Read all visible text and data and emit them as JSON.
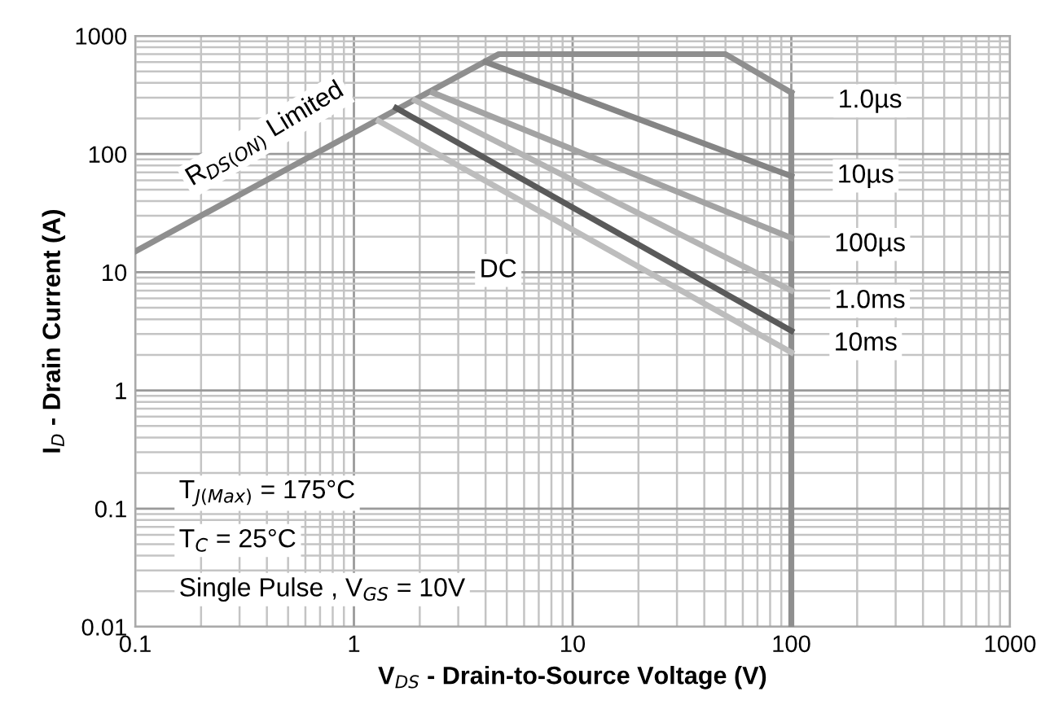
{
  "chart_data": {
    "type": "line",
    "xlabel": "V$_{DS}$ - Drain-to-Source Voltage (V)",
    "ylabel": "I$_{D}$ - Drain Current (A)",
    "log": "xy",
    "grid": true,
    "xlim": [
      0.1,
      1000
    ],
    "ylim": [
      0.01,
      1000
    ],
    "xticks": [
      0.1,
      1,
      10,
      100,
      1000
    ],
    "yticks": [
      0.01,
      0.1,
      1,
      10,
      100,
      1000
    ],
    "series": [
      {
        "color": "#8f8f8f",
        "x": [
          0.1,
          4.6,
          50,
          100
        ],
        "values": [
          15,
          700,
          700,
          330
        ]
      },
      {
        "color": "#8f8f8f",
        "x": [
          100,
          100
        ],
        "values": [
          0.01,
          330
        ]
      },
      {
        "color": "#858585",
        "x": [
          4.0,
          100
        ],
        "values": [
          600,
          65
        ]
      },
      {
        "color": "#a3a3a3",
        "x": [
          2.3,
          100
        ],
        "values": [
          330,
          19.5
        ]
      },
      {
        "color": "#b5b5b5",
        "x": [
          1.9,
          100
        ],
        "values": [
          285,
          7
        ]
      },
      {
        "color": "#5a5a5a",
        "x": [
          1.56,
          100
        ],
        "values": [
          245,
          3.2
        ]
      },
      {
        "color": "#bdbdbd",
        "x": [
          1.3,
          100
        ],
        "values": [
          190,
          2.1
        ]
      }
    ],
    "annotations": [
      "R$_{DS(ON)}$ Limited",
      "1.0µs",
      "10µs",
      "100µs",
      "1.0ms",
      "10ms",
      "DC",
      "T$_{J(Max)}$ = 175°C",
      "T$_{C}$ = 25°C",
      "Single Pulse , V$_{GS}$ = 10V"
    ]
  }
}
